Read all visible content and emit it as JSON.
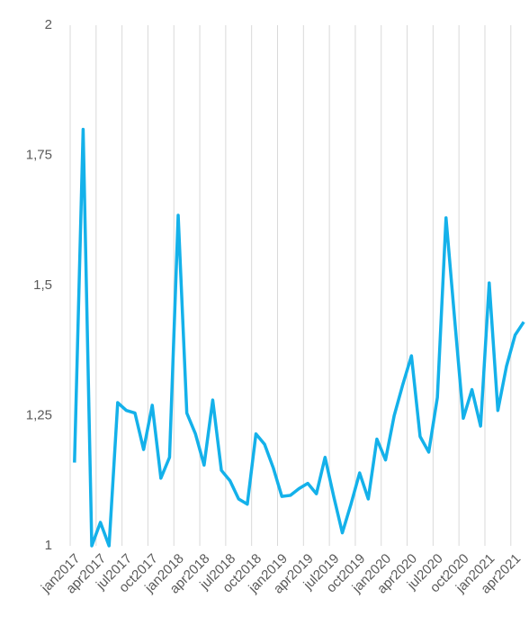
{
  "chart_data": {
    "type": "line",
    "categories": [
      "jan2017",
      null,
      null,
      "apr2017",
      null,
      null,
      "jul2017",
      null,
      null,
      "oct2017",
      null,
      null,
      "jan2018",
      null,
      null,
      "apr2018",
      null,
      null,
      "jul2018",
      null,
      null,
      "oct2018",
      null,
      null,
      "jan2019",
      null,
      null,
      "apr2019",
      null,
      null,
      "jul2019",
      null,
      null,
      "oct2019",
      null,
      null,
      "jan2020",
      null,
      null,
      "apr2020",
      null,
      null,
      "jul2020",
      null,
      null,
      "oct2020",
      null,
      null,
      "jan2021",
      null,
      null,
      "apr2021",
      null
    ],
    "values": [
      1.16,
      1.8,
      1.0,
      1.045,
      1.0,
      1.275,
      1.26,
      1.255,
      1.185,
      1.27,
      1.13,
      1.17,
      1.635,
      1.255,
      1.215,
      1.155,
      1.28,
      1.145,
      1.125,
      1.09,
      1.08,
      1.215,
      1.195,
      1.15,
      1.095,
      1.097,
      1.11,
      1.12,
      1.1,
      1.17,
      1.095,
      1.025,
      1.08,
      1.14,
      1.09,
      1.205,
      1.165,
      1.25,
      1.31,
      1.365,
      1.21,
      1.18,
      1.285,
      1.63,
      1.435,
      1.245,
      1.3,
      1.23,
      1.505,
      1.26,
      1.345,
      1.405,
      1.43
    ],
    "color": "#14b1ea",
    "ylim": [
      1,
      2
    ],
    "yticks": [
      1,
      {
        "value": 1.25,
        "label": "1,25"
      },
      {
        "value": 1.5,
        "label": "1,5"
      },
      {
        "value": 1.75,
        "label": "1,75"
      },
      2
    ],
    "grid": true
  }
}
